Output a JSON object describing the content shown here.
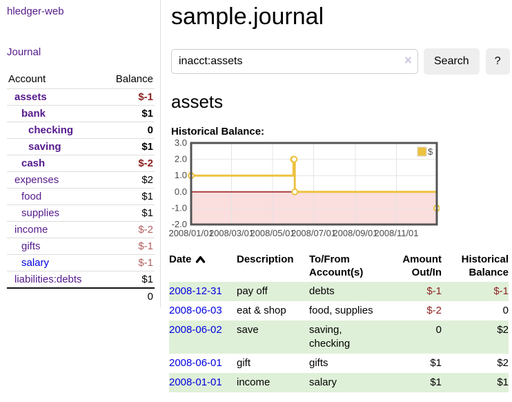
{
  "sidebar": {
    "app_title": "hledger-web",
    "journal_link": "Journal",
    "accounts_table": {
      "headers": {
        "account": "Account",
        "balance": "Balance"
      },
      "rows": [
        {
          "name": "assets",
          "indent": 1,
          "bold": true,
          "balance": "$-1",
          "negative": "strong"
        },
        {
          "name": "bank",
          "indent": 2,
          "bold": true,
          "balance": "$1"
        },
        {
          "name": "checking",
          "indent": 3,
          "bold": true,
          "balance": "0"
        },
        {
          "name": "saving",
          "indent": 3,
          "bold": true,
          "balance": "$1"
        },
        {
          "name": "cash",
          "indent": 2,
          "bold": true,
          "balance": "$-2",
          "negative": "strong"
        },
        {
          "name": "expenses",
          "indent": 1,
          "bold": false,
          "balance": "$2"
        },
        {
          "name": "food",
          "indent": 2,
          "bold": false,
          "balance": "$1"
        },
        {
          "name": "supplies",
          "indent": 2,
          "bold": false,
          "balance": "$1"
        },
        {
          "name": "income",
          "indent": 1,
          "bold": false,
          "balance": "$-2",
          "negative": "muted"
        },
        {
          "name": "gifts",
          "indent": 2,
          "bold": false,
          "balance": "$-1",
          "negative": "muted"
        },
        {
          "name": "salary",
          "indent": 2,
          "bold": false,
          "balance": "$-1",
          "negative": "muted",
          "link_blue": true
        },
        {
          "name": "liabilities:debts",
          "indent": 1,
          "bold": false,
          "balance": "$1"
        }
      ],
      "total": "0"
    }
  },
  "main": {
    "title": "sample.journal",
    "search": {
      "value": "inacct:assets",
      "clear_icon": "×",
      "button_label": "Search",
      "help_label": "?"
    },
    "account_heading": "assets",
    "chart_heading": "Historical Balance:",
    "register_table": {
      "sort_icon": "∧",
      "headers": {
        "date": "Date",
        "description": "Description",
        "accounts": "To/From Account(s)",
        "amount": "Amount Out/In",
        "balance": "Historical Balance"
      },
      "rows": [
        {
          "date": "2008-12-31",
          "description": "pay off",
          "accounts": "debts",
          "amount": "$-1",
          "amount_negative": true,
          "balance": "$-1",
          "balance_negative": true
        },
        {
          "date": "2008-06-03",
          "description": "eat & shop",
          "accounts": "food, supplies",
          "amount": "$-2",
          "amount_negative": true,
          "balance": "0",
          "balance_negative": false
        },
        {
          "date": "2008-06-02",
          "description": "save",
          "accounts": "saving, checking",
          "amount": "0",
          "amount_negative": false,
          "balance": "$2",
          "balance_negative": false
        },
        {
          "date": "2008-06-01",
          "description": "gift",
          "accounts": "gifts",
          "amount": "$1",
          "amount_negative": false,
          "balance": "$2",
          "balance_negative": false
        },
        {
          "date": "2008-01-01",
          "description": "income",
          "accounts": "salary",
          "amount": "$1",
          "amount_negative": false,
          "balance": "$1",
          "balance_negative": false
        }
      ]
    }
  },
  "chart_data": {
    "type": "line",
    "step": true,
    "title": "Historical Balance:",
    "series": [
      {
        "name": "$",
        "color": "#EDC240",
        "points": [
          [
            "2008-01-01",
            1
          ],
          [
            "2008-06-01",
            2
          ],
          [
            "2008-06-02",
            2
          ],
          [
            "2008-06-03",
            0
          ],
          [
            "2008-12-31",
            -1
          ]
        ]
      }
    ],
    "xlim": [
      "2008-01-01",
      "2008-12-31"
    ],
    "ylim": [
      -2,
      3
    ],
    "yticks": [
      3,
      2,
      1,
      0,
      -1,
      -2
    ],
    "xticks": [
      {
        "date": "2008-01-01",
        "label": "2008/01/01"
      },
      {
        "date": "2008-03-01",
        "label": "2008/03/01"
      },
      {
        "date": "2008-05-01",
        "label": "2008/05/01"
      },
      {
        "date": "2008-07-01",
        "label": "2008/07/01"
      },
      {
        "date": "2008-09-01",
        "label": "2008/09/01"
      },
      {
        "date": "2008-11-01",
        "label": "2008/11/01"
      }
    ],
    "legend": {
      "label": "$",
      "position": "top-right"
    },
    "grid": true,
    "negative_region_fill": "#fbdede",
    "zero_line_color": "#8b0000",
    "grid_color": "#e4e4e4",
    "border_color": "#545454"
  },
  "colors": {
    "link_purple": "#551a8b",
    "link_blue": "#0000e0",
    "negative_strong": "#8d2222",
    "negative_muted": "#b15f5f",
    "row_stripe_green": "#dff0d8",
    "button_bg": "#eeeeee",
    "divider": "#dddddd",
    "chart_gold": "#EDC240"
  }
}
